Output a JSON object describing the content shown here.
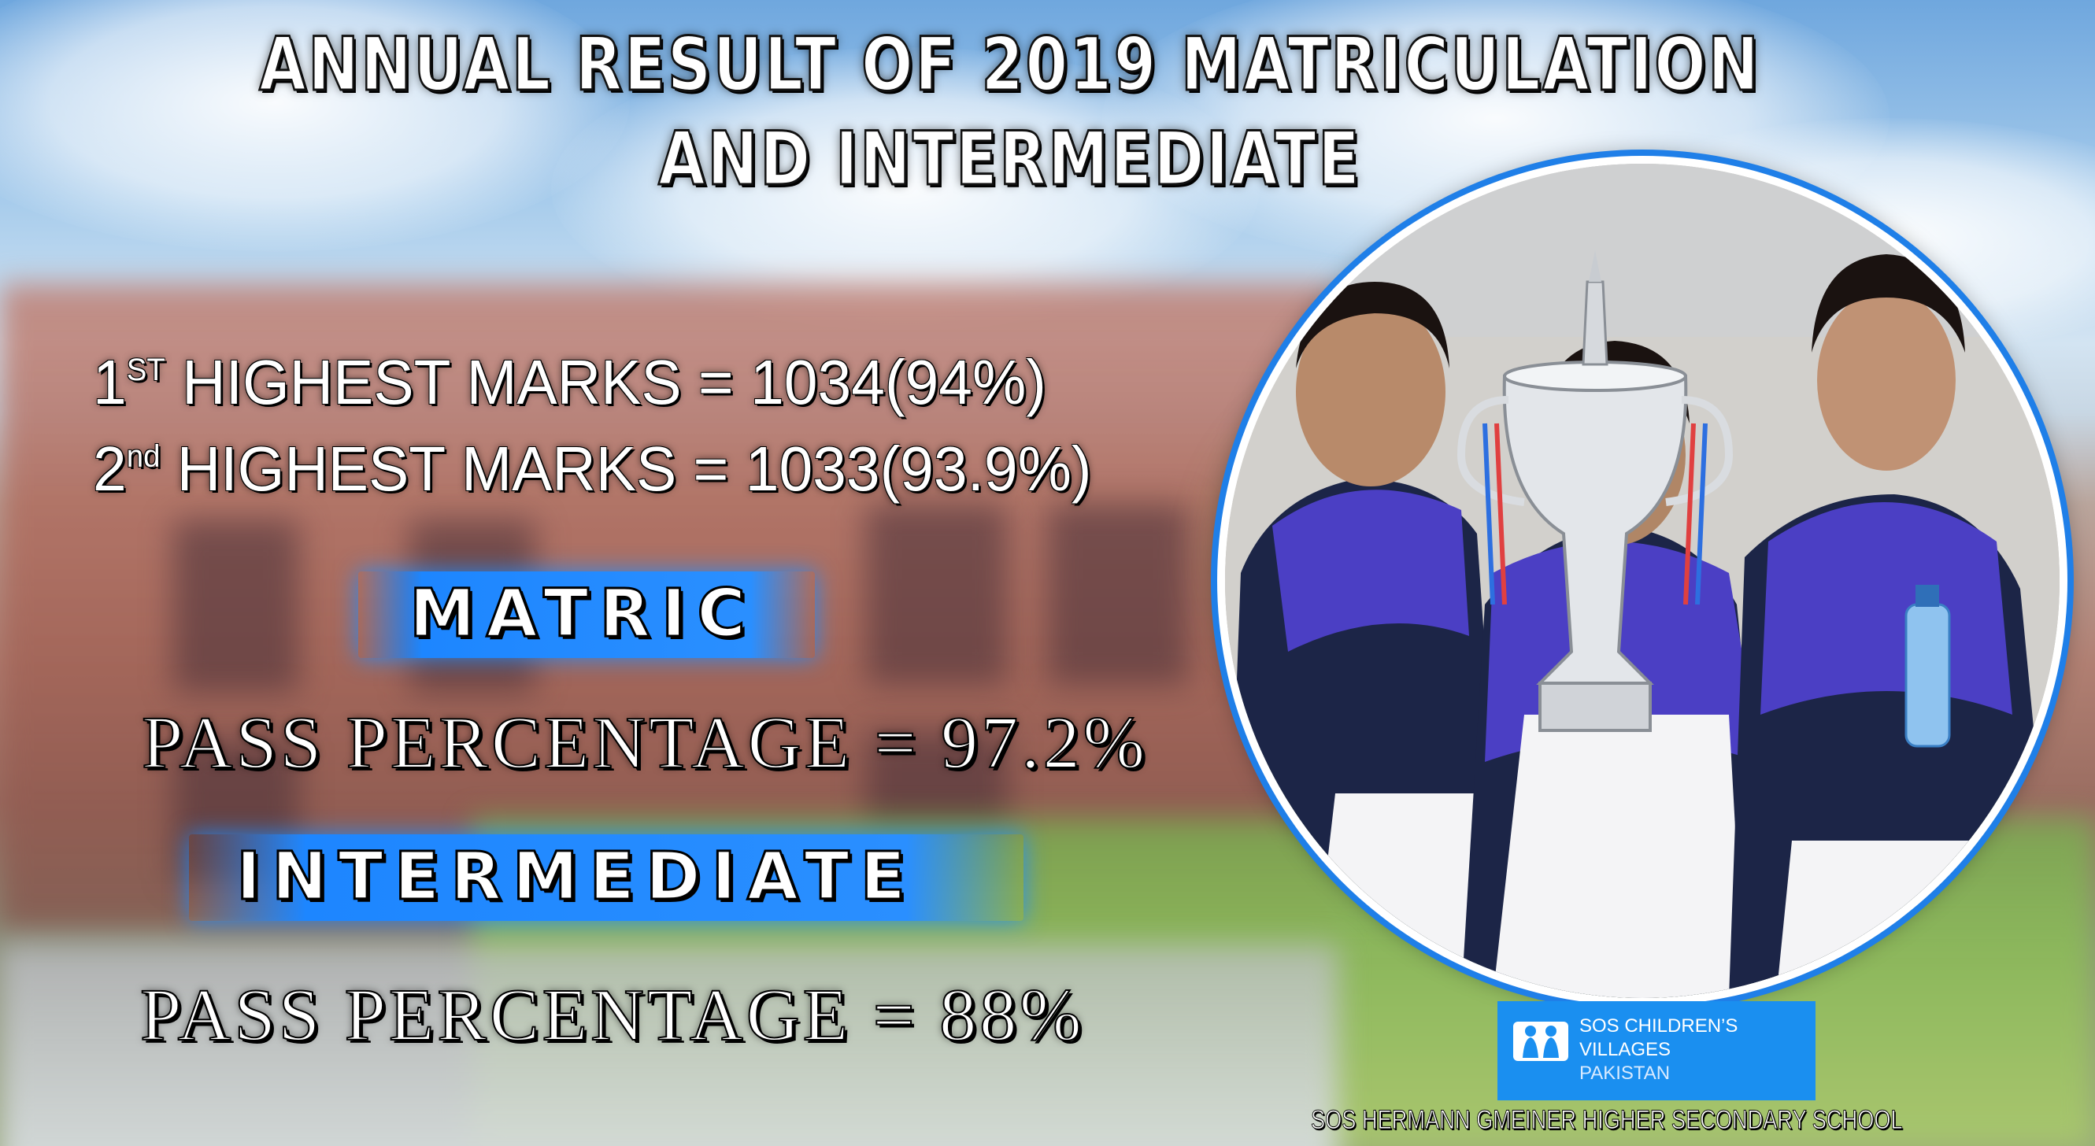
{
  "title": {
    "line1": "ANNUAL RESULT OF 2019 MATRICULATION",
    "line2": "AND INTERMEDIATE"
  },
  "highest_marks": [
    {
      "rank": "1",
      "suffix": "ST",
      "text": "HIGHEST MARKS = 1034(94%)"
    },
    {
      "rank": "2",
      "suffix": "nd",
      "text": "HIGHEST MARKS = 1033(93.9%)"
    }
  ],
  "matric": {
    "label": "MATRIC",
    "pass": "PASS PERCENTAGE = 97.2%"
  },
  "intermediate": {
    "label": "INTERMEDIATE",
    "pass": "PASS PERCENTAGE = 88%"
  },
  "logo": {
    "icon": "sos-children-icon",
    "line1": "SOS CHILDREN’S",
    "line2": "VILLAGES",
    "line3": "PAKISTAN"
  },
  "footer": {
    "school": "SOS HERMANN GMEINER HIGHER SECONDARY SCHOOL"
  },
  "colors": {
    "accent_blue": "#1d86ff",
    "ring_blue": "#1f7fe8",
    "logo_blue": "#1a8ff0",
    "uniform_purple": "#4b3fc4",
    "uniform_navy": "#1c2547"
  }
}
